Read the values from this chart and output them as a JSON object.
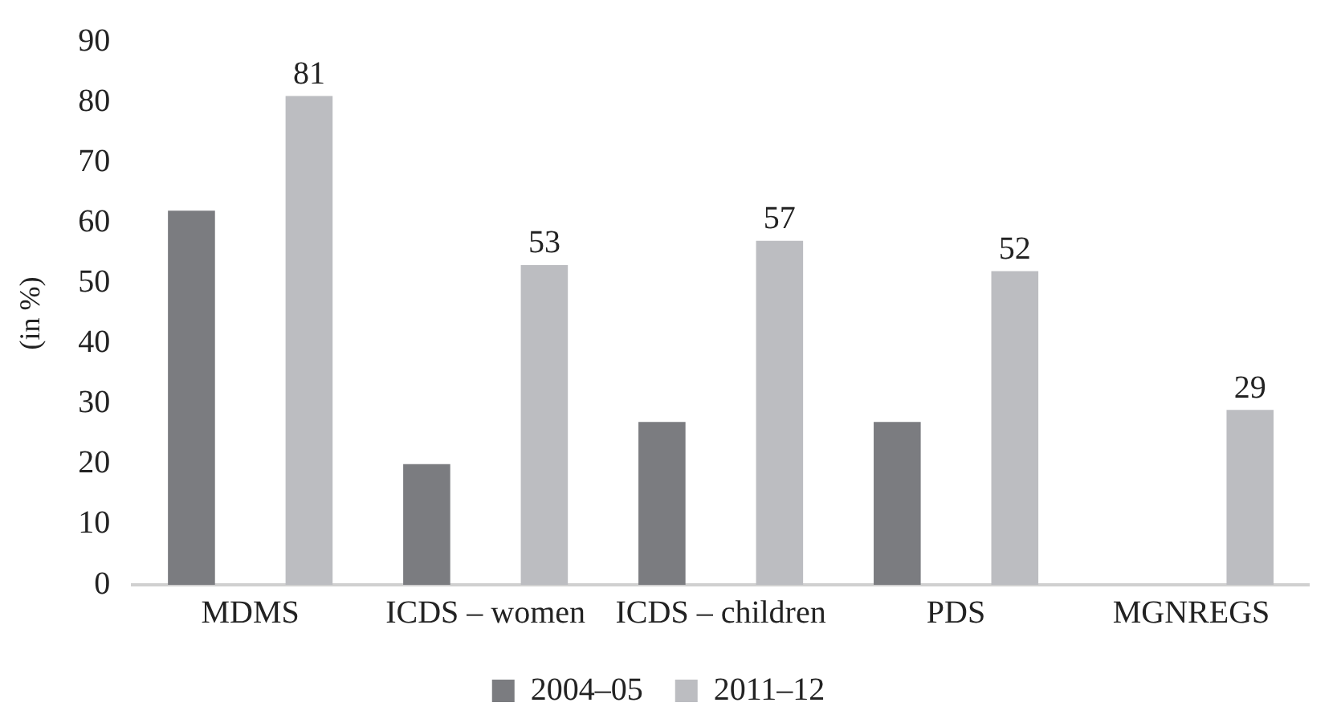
{
  "chart_data": {
    "type": "bar",
    "ylabel": "(in %)",
    "categories": [
      "MDMS",
      "ICDS – women",
      "ICDS – children",
      "PDS",
      "MGNREGS"
    ],
    "series": [
      {
        "name": "2004–05",
        "color": "#7b7c80",
        "values": [
          62,
          20,
          27,
          27,
          null
        ]
      },
      {
        "name": "2011–12",
        "color": "#bcbdc1",
        "values": [
          81,
          53,
          57,
          52,
          29
        ],
        "value_labels": [
          "81",
          "53",
          "57",
          "52",
          "29"
        ]
      }
    ],
    "ylim": [
      0,
      90
    ],
    "yticks": [
      0,
      10,
      20,
      30,
      40,
      50,
      60,
      70,
      80,
      90
    ],
    "grid": false,
    "legend": "bottom"
  }
}
